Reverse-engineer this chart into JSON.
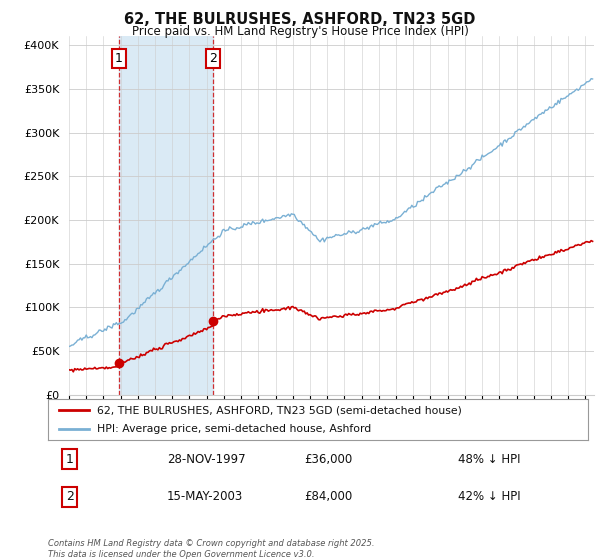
{
  "title": "62, THE BULRUSHES, ASHFORD, TN23 5GD",
  "subtitle": "Price paid vs. HM Land Registry's House Price Index (HPI)",
  "ylabel_ticks": [
    "£0",
    "£50K",
    "£100K",
    "£150K",
    "£200K",
    "£250K",
    "£300K",
    "£350K",
    "£400K"
  ],
  "ytick_values": [
    0,
    50000,
    100000,
    150000,
    200000,
    250000,
    300000,
    350000,
    400000
  ],
  "ylim": [
    0,
    410000
  ],
  "xlim_start": 1995.0,
  "xlim_end": 2025.5,
  "t1_x": 1997.91,
  "t1_price": 36000,
  "t2_x": 2003.37,
  "t2_price": 84000,
  "line_color_property": "#cc0000",
  "line_color_hpi": "#7ab0d4",
  "legend_label_property": "62, THE BULRUSHES, ASHFORD, TN23 5GD (semi-detached house)",
  "legend_label_hpi": "HPI: Average price, semi-detached house, Ashford",
  "table_rows": [
    {
      "num": "1",
      "date": "28-NOV-1997",
      "price": "£36,000",
      "pct": "48% ↓ HPI"
    },
    {
      "num": "2",
      "date": "15-MAY-2003",
      "price": "£84,000",
      "pct": "42% ↓ HPI"
    }
  ],
  "footer": "Contains HM Land Registry data © Crown copyright and database right 2025.\nThis data is licensed under the Open Government Licence v3.0.",
  "bg_color": "#ffffff",
  "shaded_region_color": "#daeaf5",
  "grid_color": "#cccccc"
}
